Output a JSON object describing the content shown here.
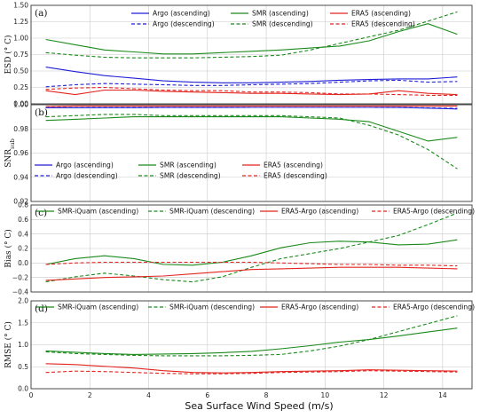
{
  "figure": {
    "xlabel": "Sea Surface Wind Speed (m/s)",
    "xticks": [
      0,
      2,
      4,
      6,
      8,
      10,
      12,
      14
    ],
    "xlim": [
      0,
      15
    ]
  },
  "colors": {
    "blue": "#1f1fd6",
    "green": "#1b8a1b",
    "red": "#e3251f"
  },
  "chart_data": [
    {
      "type": "line",
      "panel": "(a)",
      "ylabel": "ESD (° C)",
      "ylim": [
        0,
        1.5
      ],
      "yticks": [
        "0.00",
        "0.25",
        "0.50",
        "0.75",
        "1.00",
        "1.25",
        "1.50"
      ],
      "legend": {
        "placement": "top",
        "columns": 3
      },
      "x": [
        0.5,
        1.5,
        2.5,
        3.5,
        4.5,
        5.5,
        6.5,
        7.5,
        8.5,
        9.5,
        10.5,
        11.5,
        12.5,
        13.5,
        14.5
      ],
      "series": [
        {
          "name": "Argo (ascending)",
          "color": "blue",
          "dash": false,
          "values": [
            0.56,
            0.49,
            0.43,
            0.39,
            0.35,
            0.33,
            0.32,
            0.32,
            0.33,
            0.34,
            0.36,
            0.37,
            0.38,
            0.38,
            0.41
          ]
        },
        {
          "name": "SMR (ascending)",
          "color": "green",
          "dash": false,
          "values": [
            0.98,
            0.9,
            0.82,
            0.79,
            0.76,
            0.76,
            0.78,
            0.8,
            0.82,
            0.85,
            0.88,
            0.96,
            1.1,
            1.22,
            1.06
          ]
        },
        {
          "name": "ERA5 (ascending)",
          "color": "red",
          "dash": false,
          "values": [
            0.2,
            0.14,
            0.21,
            0.21,
            0.19,
            0.18,
            0.17,
            0.16,
            0.16,
            0.15,
            0.14,
            0.15,
            0.2,
            0.16,
            0.14
          ]
        },
        {
          "name": "Argo (descending)",
          "color": "blue",
          "dash": true,
          "values": [
            0.26,
            0.29,
            0.31,
            0.3,
            0.29,
            0.28,
            0.28,
            0.29,
            0.3,
            0.31,
            0.33,
            0.35,
            0.36,
            0.33,
            0.34
          ]
        },
        {
          "name": "SMR (descending)",
          "color": "green",
          "dash": true,
          "values": [
            0.78,
            0.74,
            0.71,
            0.7,
            0.7,
            0.7,
            0.71,
            0.72,
            0.74,
            0.82,
            0.92,
            1.02,
            1.12,
            1.26,
            1.4
          ]
        },
        {
          "name": "ERA5 (descending)",
          "color": "red",
          "dash": true,
          "values": [
            0.22,
            0.24,
            0.25,
            0.23,
            0.21,
            0.2,
            0.2,
            0.18,
            0.18,
            0.17,
            0.15,
            0.15,
            0.14,
            0.13,
            0.13
          ]
        }
      ]
    },
    {
      "type": "line",
      "panel": "(b)",
      "ylabel": "SNR",
      "ylabel_sub": "sub",
      "ylim": [
        0.92,
        1.0
      ],
      "yticks": [
        "0.92",
        "0.94",
        "0.96",
        "0.98",
        "1.00"
      ],
      "legend": {
        "placement": "bottom-left",
        "columns": 3
      },
      "x": [
        0.5,
        1.5,
        2.5,
        3.5,
        4.5,
        5.5,
        6.5,
        7.5,
        8.5,
        9.5,
        10.5,
        11.5,
        12.5,
        13.5,
        14.5
      ],
      "series": [
        {
          "name": "Argo (ascending)",
          "color": "blue",
          "dash": false,
          "values": [
            0.9975,
            0.9975,
            0.9976,
            0.9976,
            0.9977,
            0.9977,
            0.9977,
            0.9978,
            0.9978,
            0.9978,
            0.9978,
            0.9978,
            0.9977,
            0.9972,
            0.9965
          ]
        },
        {
          "name": "SMR (ascending)",
          "color": "green",
          "dash": false,
          "values": [
            0.987,
            0.988,
            0.989,
            0.99,
            0.99,
            0.99,
            0.99,
            0.99,
            0.99,
            0.989,
            0.988,
            0.986,
            0.978,
            0.97,
            0.973
          ]
        },
        {
          "name": "ERA5 (ascending)",
          "color": "red",
          "dash": false,
          "values": [
            0.9985,
            0.999,
            0.999,
            0.999,
            0.999,
            0.999,
            0.999,
            0.999,
            0.999,
            0.999,
            0.999,
            0.999,
            0.999,
            0.999,
            0.999
          ]
        },
        {
          "name": "Argo (descending)",
          "color": "blue",
          "dash": true,
          "values": [
            0.9975,
            0.9975,
            0.9976,
            0.9976,
            0.9977,
            0.9977,
            0.9977,
            0.9978,
            0.9978,
            0.9978,
            0.9978,
            0.9978,
            0.9977,
            0.9974,
            0.997
          ]
        },
        {
          "name": "SMR (descending)",
          "color": "green",
          "dash": true,
          "values": [
            0.99,
            0.991,
            0.992,
            0.992,
            0.991,
            0.991,
            0.991,
            0.991,
            0.991,
            0.99,
            0.989,
            0.983,
            0.975,
            0.963,
            0.947
          ]
        },
        {
          "name": "ERA5 (descending)",
          "color": "red",
          "dash": true,
          "values": [
            0.9985,
            0.9988,
            0.9988,
            0.9988,
            0.9988,
            0.9988,
            0.9988,
            0.9988,
            0.9988,
            0.9988,
            0.9988,
            0.9988,
            0.9988,
            0.9988,
            0.9988
          ]
        }
      ]
    },
    {
      "type": "line",
      "panel": "(c)",
      "ylabel": "Bias (° C)",
      "ylim": [
        -0.4,
        0.8
      ],
      "yticks": [
        "−0.4",
        "−0.2",
        "0.0",
        "0.2",
        "0.4",
        "0.6",
        "0.8"
      ],
      "legend": {
        "placement": "top",
        "columns": 4
      },
      "x": [
        0.5,
        1.5,
        2.5,
        3.5,
        4.5,
        5.5,
        6.5,
        7.5,
        8.5,
        9.5,
        10.5,
        11.5,
        12.5,
        13.5,
        14.5
      ],
      "series": [
        {
          "name": "SMR-iQuam (ascending)",
          "color": "green",
          "dash": false,
          "values": [
            -0.02,
            0.06,
            0.1,
            0.06,
            -0.02,
            -0.03,
            0.01,
            0.1,
            0.21,
            0.28,
            0.3,
            0.29,
            0.25,
            0.26,
            0.32
          ]
        },
        {
          "name": "SMR-iQuam (descending)",
          "color": "green",
          "dash": true,
          "values": [
            -0.26,
            -0.19,
            -0.14,
            -0.18,
            -0.23,
            -0.26,
            -0.19,
            -0.06,
            0.06,
            0.13,
            0.2,
            0.29,
            0.38,
            0.53,
            0.69
          ]
        },
        {
          "name": "ERA5-Argo (ascending)",
          "color": "red",
          "dash": false,
          "values": [
            -0.24,
            -0.22,
            -0.2,
            -0.19,
            -0.18,
            -0.15,
            -0.12,
            -0.09,
            -0.08,
            -0.07,
            -0.06,
            -0.06,
            -0.06,
            -0.07,
            -0.08
          ]
        },
        {
          "name": "ERA5-Argo (descending)",
          "color": "red",
          "dash": true,
          "values": [
            -0.02,
            0.0,
            0.01,
            0.01,
            0.01,
            0.01,
            0.01,
            0.01,
            0.0,
            -0.01,
            -0.02,
            -0.02,
            -0.03,
            -0.03,
            -0.04
          ]
        }
      ]
    },
    {
      "type": "line",
      "panel": "(d)",
      "ylabel": "RMSE (° C)",
      "ylim": [
        0,
        2.0
      ],
      "yticks": [
        "0.0",
        "0.5",
        "1.0",
        "1.5",
        "2.0"
      ],
      "legend": {
        "placement": "top",
        "columns": 4
      },
      "x": [
        0.5,
        1.5,
        2.5,
        3.5,
        4.5,
        5.5,
        6.5,
        7.5,
        8.5,
        9.5,
        10.5,
        11.5,
        12.5,
        13.5,
        14.5
      ],
      "series": [
        {
          "name": "SMR-iQuam (ascending)",
          "color": "green",
          "dash": false,
          "values": [
            0.86,
            0.83,
            0.8,
            0.78,
            0.79,
            0.8,
            0.82,
            0.85,
            0.91,
            0.98,
            1.06,
            1.12,
            1.2,
            1.29,
            1.38
          ]
        },
        {
          "name": "SMR-iQuam (descending)",
          "color": "green",
          "dash": true,
          "values": [
            0.84,
            0.8,
            0.78,
            0.76,
            0.75,
            0.75,
            0.75,
            0.76,
            0.78,
            0.86,
            0.97,
            1.12,
            1.3,
            1.48,
            1.66
          ]
        },
        {
          "name": "ERA5-Argo (ascending)",
          "color": "red",
          "dash": false,
          "values": [
            0.57,
            0.55,
            0.51,
            0.47,
            0.41,
            0.37,
            0.36,
            0.37,
            0.39,
            0.4,
            0.41,
            0.43,
            0.42,
            0.41,
            0.4
          ]
        },
        {
          "name": "ERA5-Argo (descending)",
          "color": "red",
          "dash": true,
          "values": [
            0.37,
            0.4,
            0.39,
            0.37,
            0.35,
            0.34,
            0.34,
            0.35,
            0.37,
            0.38,
            0.39,
            0.41,
            0.4,
            0.39,
            0.38
          ]
        }
      ]
    }
  ]
}
